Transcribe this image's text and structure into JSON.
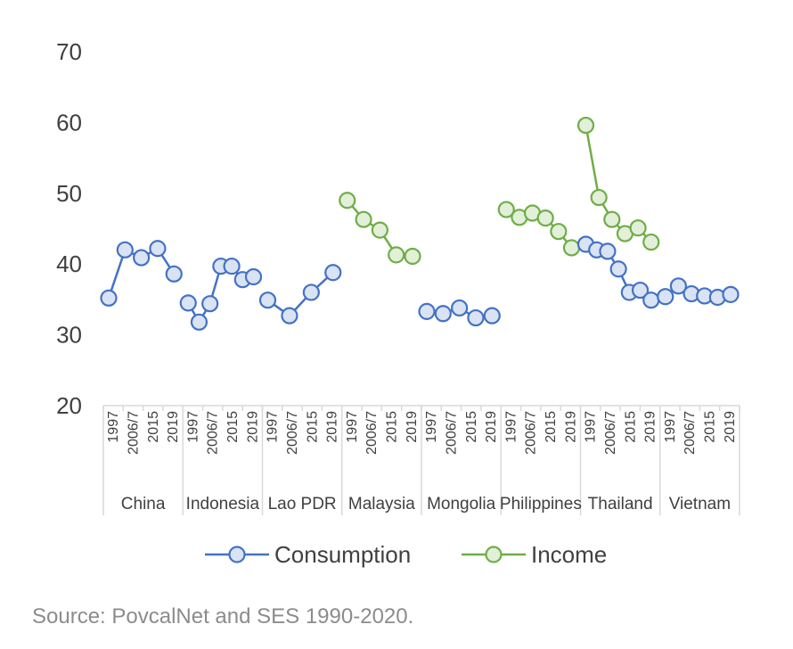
{
  "chart_data": {
    "type": "line",
    "ylim": [
      20,
      70
    ],
    "yticks": [
      "20",
      "30",
      "40",
      "50",
      "60",
      "70"
    ],
    "year_labels": [
      "1997",
      "2006/7",
      "2015",
      "2019"
    ],
    "groups": [
      {
        "name": "China",
        "series": "Consumption",
        "values": [
          35.2,
          42.0,
          40.9,
          42.2,
          38.6
        ]
      },
      {
        "name": "Indonesia",
        "series": "Consumption",
        "values": [
          34.5,
          31.8,
          34.4,
          39.7,
          39.7,
          37.8,
          38.2
        ]
      },
      {
        "name": "Lao PDR",
        "series": "Consumption",
        "values": [
          34.9,
          32.7,
          36.0,
          38.8
        ]
      },
      {
        "name": "Malaysia",
        "series": "Income",
        "values": [
          49.0,
          46.3,
          44.8,
          41.3,
          41.1
        ]
      },
      {
        "name": "Mongolia",
        "series": "Consumption",
        "values": [
          33.3,
          33.0,
          33.8,
          32.4,
          32.7
        ]
      },
      {
        "name": "Philippines",
        "series": "Income",
        "values": [
          47.7,
          46.6,
          47.2,
          46.5,
          44.6,
          42.3
        ]
      },
      {
        "name": "Thailand",
        "series": "Income",
        "values": [
          59.6,
          49.4,
          46.3,
          44.3,
          45.1,
          43.1
        ]
      },
      {
        "name": "Thailand",
        "series": "Consumption",
        "values": [
          42.8,
          42.0,
          41.8,
          39.3,
          36.0,
          36.3,
          34.9
        ]
      },
      {
        "name": "Vietnam",
        "series": "Consumption",
        "values": [
          35.4,
          36.9,
          35.8,
          35.5,
          35.3,
          35.7
        ]
      }
    ],
    "group_names": [
      "China",
      "Indonesia",
      "Lao PDR",
      "Malaysia",
      "Mongolia",
      "Philippines",
      "Thailand",
      "Vietnam"
    ],
    "series": [
      {
        "name": "Consumption",
        "color": "#4472c4",
        "fill": "#dae3f3"
      },
      {
        "name": "Income",
        "color": "#70ad47",
        "fill": "#e2efd9"
      }
    ],
    "legend": "bottom",
    "grid": false
  },
  "source": "Source: PovcalNet and SES 1990-2020."
}
